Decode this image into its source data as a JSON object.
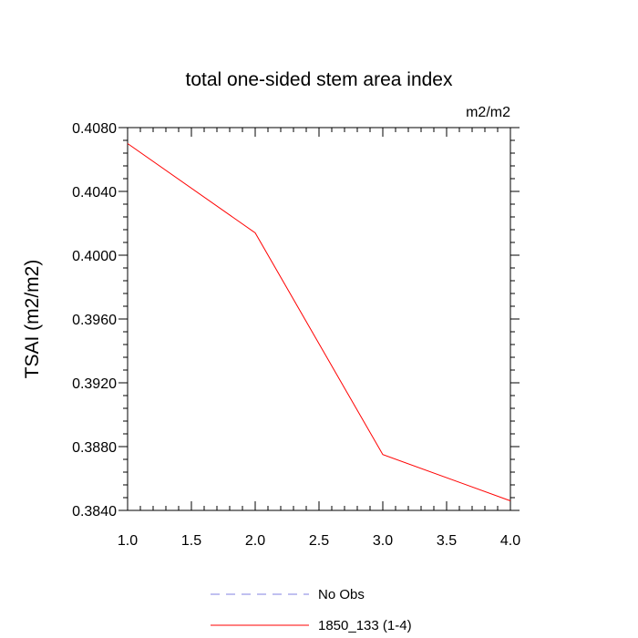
{
  "chart_data": {
    "type": "line",
    "title": "total one-sided stem area index",
    "units_label": "m2/m2",
    "xlabel": "",
    "ylabel": "TSAI  (m2/m2)",
    "xlim": [
      1.0,
      4.0
    ],
    "ylim": [
      0.384,
      0.408
    ],
    "x_ticks": [
      "1.0",
      "1.5",
      "2.0",
      "2.5",
      "3.0",
      "3.5",
      "4.0"
    ],
    "y_ticks": [
      "0.3840",
      "0.3880",
      "0.3920",
      "0.3960",
      "0.4000",
      "0.4040",
      "0.4080"
    ],
    "grid": false,
    "legend_position": "bottom",
    "series": [
      {
        "name": "No Obs",
        "style": "dashed",
        "color": "#8080e0",
        "x": [],
        "values": []
      },
      {
        "name": "1850_133 (1-4)",
        "style": "solid",
        "color": "#ff0000",
        "x": [
          1,
          2,
          3,
          4
        ],
        "values": [
          0.407,
          0.4014,
          0.3875,
          0.3846
        ]
      }
    ]
  }
}
